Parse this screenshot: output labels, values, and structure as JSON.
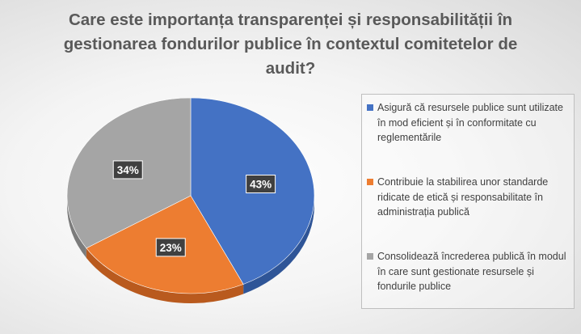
{
  "chart_data": {
    "type": "pie",
    "title": "Care este importanța transparenței și responsabilității în\ngestionarea fondurilor publice în contextul comitetelor de\naudit?",
    "slices": [
      {
        "label": "Asigură că resursele publice sunt utilizate în mod eficient și în conformitate cu reglementările",
        "value": 43,
        "display": "43%",
        "color": "#4472C4",
        "side_color": "#2F5597"
      },
      {
        "label": "Contribuie la stabilirea unor standarde ridicate de etică și responsabilitate în administrația publică",
        "value": 23,
        "display": "23%",
        "color": "#ED7D31",
        "side_color": "#B95A1E"
      },
      {
        "label": "Consolidează încrederea publică în modul în care sunt gestionate resursele și fondurile publice",
        "value": 34,
        "display": "34%",
        "color": "#A5A5A5",
        "side_color": "#7B7B7B"
      }
    ],
    "legend_position": "right",
    "style": "3d"
  }
}
